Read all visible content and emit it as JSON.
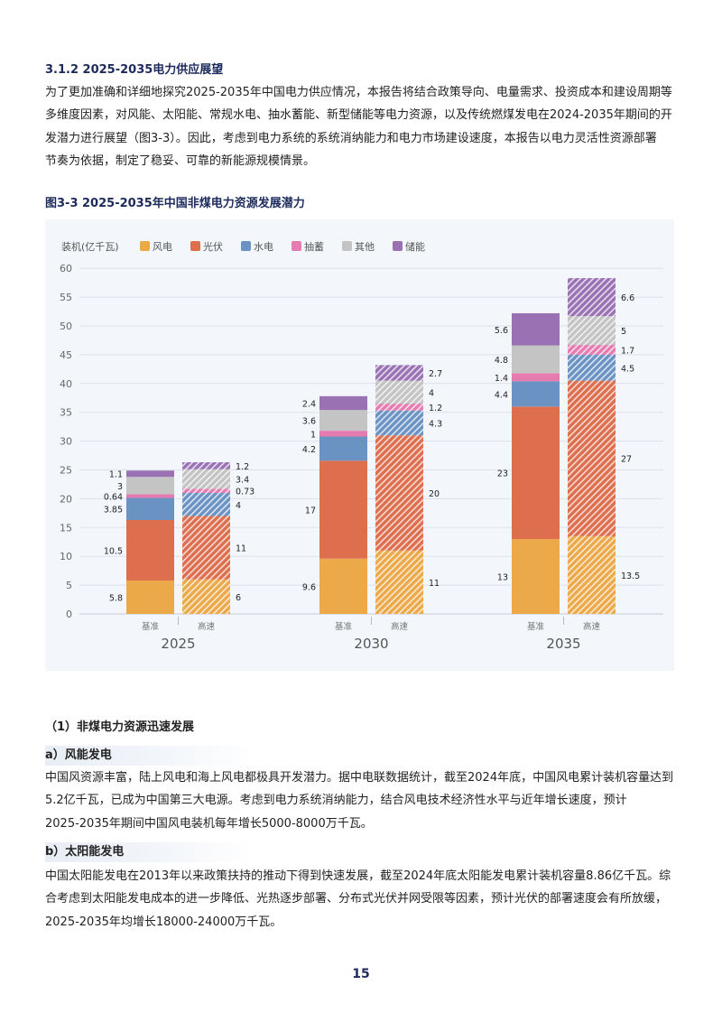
{
  "heading": "3.1.2 2025-2035电力供应展望",
  "intro_lines": [
    "为了更加准确和详细地探究2025-2035年中国电力供应情况，本报告将结合政策导向、电量需求、投资成本和建设周期等",
    "多维度因素，对风能、太阳能、常规水电、抽水蓄能、新型储能等电力资源，以及传统燃煤发电在2024-2035年期间的开",
    "发潜力进行展望（图3-3）。因此，考虑到电力系统的系统消纳能力和电力市场建设速度，本报告以电力灵活性资源部署",
    "节奏为依据，制定了稳妥、可靠的新能源规模情景。"
  ],
  "figure_title": "图3-3 2025-2035年中国非煤电力资源发展潜力",
  "chart_data": {
    "type": "bar",
    "stacked": true,
    "ylabel": "装机(亿千瓦)",
    "ylim": [
      0,
      60
    ],
    "yticks": [
      0,
      5,
      10,
      15,
      20,
      25,
      30,
      35,
      40,
      45,
      50,
      55,
      60
    ],
    "grid": true,
    "legend_placement": "top-left",
    "groups": [
      "2025",
      "2030",
      "2035"
    ],
    "scenarios": [
      "基准",
      "高速"
    ],
    "series": [
      {
        "name": "风电",
        "color": "#eba94a",
        "values": [
          [
            5.8,
            6
          ],
          [
            9.6,
            11
          ],
          [
            13,
            13.5
          ]
        ]
      },
      {
        "name": "光伏",
        "color": "#dd6e4e",
        "values": [
          [
            10.5,
            11
          ],
          [
            17,
            20
          ],
          [
            23,
            27
          ]
        ]
      },
      {
        "name": "水电",
        "color": "#6a93c4",
        "values": [
          [
            3.85,
            4
          ],
          [
            4.2,
            4.3
          ],
          [
            4.4,
            4.5
          ]
        ]
      },
      {
        "name": "抽蓄",
        "color": "#e57bb0",
        "values": [
          [
            0.64,
            0.73
          ],
          [
            1,
            1.2
          ],
          [
            1.4,
            1.7
          ]
        ]
      },
      {
        "name": "其他",
        "color": "#c4c4c4",
        "values": [
          [
            3,
            3.4
          ],
          [
            3.6,
            4
          ],
          [
            4.8,
            5
          ]
        ]
      },
      {
        "name": "储能",
        "color": "#9a72b4",
        "values": [
          [
            1.1,
            1.2
          ],
          [
            2.4,
            2.7
          ],
          [
            5.6,
            6.6
          ]
        ]
      }
    ],
    "hatched_scenario": "高速"
  },
  "section1": "（1）非煤电力资源迅速发展",
  "wind": {
    "title": "a）风能发电",
    "lines": [
      "中国风资源丰富，陆上风电和海上风电都极具开发潜力。据中电联数据统计，截至2024年底，中国风电累计装机容量达到",
      "5.2亿千瓦，已成为中国第三大电源。考虑到电力系统消纳能力，结合风电技术经济性水平与近年增长速度，预计",
      "2025-2035年期间中国风电装机每年增长5000-8000万千瓦。"
    ]
  },
  "solar": {
    "title": "b）太阳能发电",
    "lines": [
      "中国太阳能发电在2013年以来政策扶持的推动下得到快速发展，截至2024年底太阳能发电累计装机容量8.86亿千瓦。综",
      "合考虑到太阳能发电成本的进一步降低、光热逐步部署、分布式光伏并网受限等因素，预计光伏的部署速度会有所放缓，",
      "2025-2035年均增长18000-24000万千瓦。"
    ]
  },
  "page_number": "15"
}
